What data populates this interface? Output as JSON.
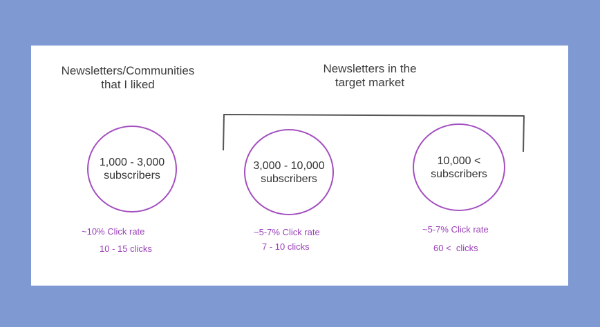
{
  "headings": {
    "left": [
      "Newsletters/Communities",
      "that I liked"
    ],
    "right": [
      "Newsletters in the",
      "target market"
    ]
  },
  "groups": [
    {
      "range": "1,000 - 3,000",
      "unit": "subscribers",
      "click_rate": "~10% Click rate",
      "clicks": "10 - 15 clicks"
    },
    {
      "range": "3,000 - 10,000",
      "unit": "subscribers",
      "click_rate": "~5-7% Click rate",
      "clicks": "7 - 10 clicks"
    },
    {
      "range": "10,000 <",
      "unit": "subscribers",
      "click_rate": "~5-7% Click rate",
      "clicks": "60 <  clicks"
    }
  ],
  "colors": {
    "background": "#7f99d2",
    "card": "#ffffff",
    "circle_stroke": "#a34fc0",
    "stat_text": "#9a3fb8",
    "bracket": "#555555"
  }
}
